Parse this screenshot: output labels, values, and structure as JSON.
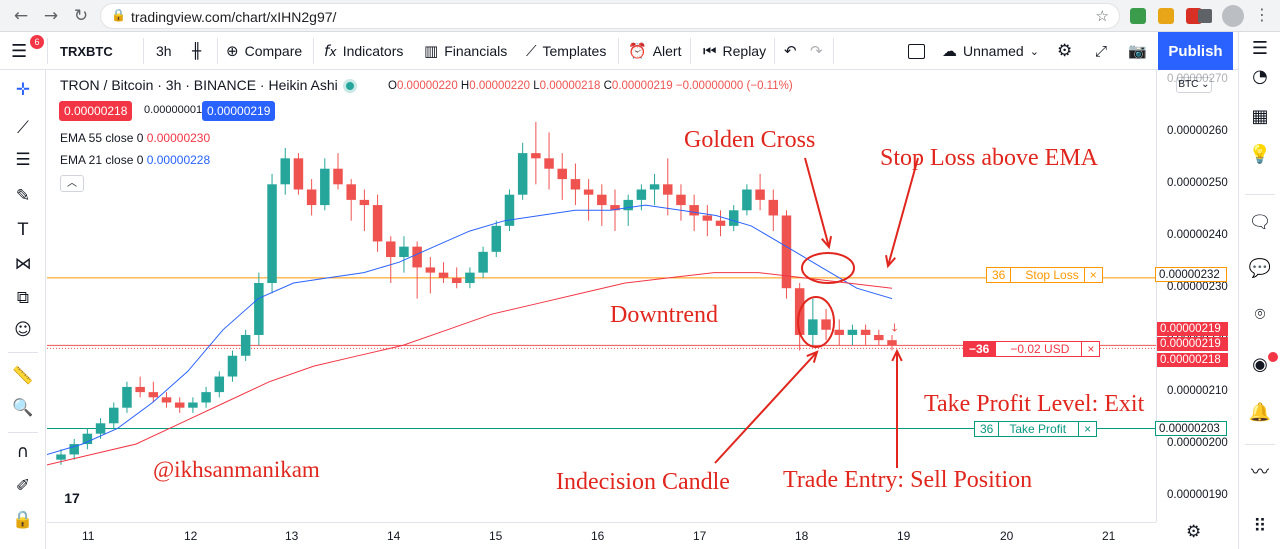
{
  "browser": {
    "back": "←",
    "forward": "→",
    "reload": "↻",
    "home": "⌂",
    "url": "tradingview.com/chart/xIHN2g97/",
    "lock": "🔒",
    "star": "☆",
    "menu": "⋮"
  },
  "toolbar": {
    "notifications": "6",
    "symbol": "TRXBTC",
    "interval": "3h",
    "compare": "Compare",
    "indicators": "Indicators",
    "financials": "Financials",
    "templates": "Templates",
    "alert": "Alert",
    "replay": "Replay",
    "layout_name": "Unnamed",
    "publish": "Publish"
  },
  "legend": {
    "title": "TRON / Bitcoin · 3h · BINANCE · Heikin Ashi",
    "o_label": "O",
    "o": "0.00000220",
    "h_label": "H",
    "h": "0.00000220",
    "l_label": "L",
    "l": "0.00000218",
    "c_label": "C",
    "c": "0.00000219",
    "change": "−0.00000000 (−0.11%)",
    "sell_price": "0.00000218",
    "spread": "0.00000001",
    "buy_price": "0.00000219",
    "ema55": "EMA 55 close 0",
    "ema55_value": "0.00000230",
    "ema21": "EMA 21 close 0",
    "ema21_value": "0.00000228",
    "collapse": "︿"
  },
  "positions": {
    "stop_loss": {
      "qty": "36",
      "label": "Stop Loss",
      "axis_price": "0.00000232"
    },
    "entry": {
      "qty": "−36",
      "label": "−0.02 USD"
    },
    "take_profit": {
      "qty": "36",
      "label": "Take Profit",
      "axis_price": "0.00000203"
    },
    "close": "×"
  },
  "price_axis": {
    "currency": "BTC ⌄",
    "ticks": [
      "0.00000270",
      "0.00000260",
      "0.00000250",
      "0.00000240",
      "0.00000230",
      "0.00000220",
      "0.00000210",
      "0.00000200",
      "0.00000190"
    ],
    "tags": [
      "0.00000219",
      "0.00000219",
      "0.00000218"
    ]
  },
  "time_axis": {
    "labels": [
      "11",
      "12",
      "13",
      "14",
      "15",
      "16",
      "17",
      "18",
      "19",
      "20",
      "21"
    ]
  },
  "annotations": {
    "golden_cross": "Golden Cross",
    "stop_loss": "Stop Loss above EMA",
    "downtrend": "Downtrend",
    "take_profit": "Take Profit Level: Exit",
    "indecision": "Indecision Candle",
    "trade_entry": "Trade Entry: Sell Position",
    "watermark": "@ikhsanmanikam"
  },
  "colors": {
    "up": "#26a69a",
    "down": "#ef5350",
    "ema21": "#2962ff",
    "ema55": "#f23645",
    "stop": "#ff9800",
    "tp": "#089981",
    "accent": "#2962ff",
    "annot": "#e0261d"
  },
  "chart_data": {
    "type": "candlestick",
    "title": "TRON / Bitcoin · 3h · BINANCE · Heikin Ashi",
    "x_labels": [
      "11",
      "12",
      "13",
      "14",
      "15",
      "16",
      "17",
      "18",
      "19",
      "20",
      "21"
    ],
    "y_range": [
      1.85e-06,
      2.72e-06
    ],
    "candles": [
      [
        1.97e-06,
        1.99e-06,
        1.96e-06,
        1.98e-06
      ],
      [
        1.98e-06,
        2.01e-06,
        1.97e-06,
        2e-06
      ],
      [
        2e-06,
        2.03e-06,
        1.99e-06,
        2.02e-06
      ],
      [
        2.02e-06,
        2.05e-06,
        2.01e-06,
        2.04e-06
      ],
      [
        2.04e-06,
        2.08e-06,
        2.03e-06,
        2.07e-06
      ],
      [
        2.07e-06,
        2.12e-06,
        2.06e-06,
        2.11e-06
      ],
      [
        2.11e-06,
        2.13e-06,
        2.09e-06,
        2.1e-06
      ],
      [
        2.1e-06,
        2.12e-06,
        2.08e-06,
        2.09e-06
      ],
      [
        2.09e-06,
        2.1e-06,
        2.07e-06,
        2.08e-06
      ],
      [
        2.08e-06,
        2.09e-06,
        2.06e-06,
        2.07e-06
      ],
      [
        2.07e-06,
        2.09e-06,
        2.06e-06,
        2.08e-06
      ],
      [
        2.08e-06,
        2.11e-06,
        2.07e-06,
        2.1e-06
      ],
      [
        2.1e-06,
        2.14e-06,
        2.09e-06,
        2.13e-06
      ],
      [
        2.13e-06,
        2.18e-06,
        2.12e-06,
        2.17e-06
      ],
      [
        2.17e-06,
        2.22e-06,
        2.16e-06,
        2.21e-06
      ],
      [
        2.21e-06,
        2.33e-06,
        2.19e-06,
        2.31e-06
      ],
      [
        2.31e-06,
        2.52e-06,
        2.29e-06,
        2.5e-06
      ],
      [
        2.5e-06,
        2.57e-06,
        2.48e-06,
        2.55e-06
      ],
      [
        2.55e-06,
        2.56e-06,
        2.48e-06,
        2.49e-06
      ],
      [
        2.49e-06,
        2.51e-06,
        2.44e-06,
        2.46e-06
      ],
      [
        2.46e-06,
        2.55e-06,
        2.45e-06,
        2.53e-06
      ],
      [
        2.53e-06,
        2.56e-06,
        2.49e-06,
        2.5e-06
      ],
      [
        2.5e-06,
        2.51e-06,
        2.43e-06,
        2.47e-06
      ],
      [
        2.47e-06,
        2.49e-06,
        2.41e-06,
        2.46e-06
      ],
      [
        2.46e-06,
        2.48e-06,
        2.37e-06,
        2.39e-06
      ],
      [
        2.39e-06,
        2.4e-06,
        2.31e-06,
        2.36e-06
      ],
      [
        2.36e-06,
        2.4e-06,
        2.33e-06,
        2.38e-06
      ],
      [
        2.38e-06,
        2.39e-06,
        2.28e-06,
        2.34e-06
      ],
      [
        2.34e-06,
        2.36e-06,
        2.29e-06,
        2.33e-06
      ],
      [
        2.33e-06,
        2.35e-06,
        2.31e-06,
        2.32e-06
      ],
      [
        2.32e-06,
        2.34e-06,
        2.3e-06,
        2.31e-06
      ],
      [
        2.31e-06,
        2.34e-06,
        2.3e-06,
        2.33e-06
      ],
      [
        2.33e-06,
        2.38e-06,
        2.32e-06,
        2.37e-06
      ],
      [
        2.37e-06,
        2.43e-06,
        2.36e-06,
        2.42e-06
      ],
      [
        2.42e-06,
        2.49e-06,
        2.41e-06,
        2.48e-06
      ],
      [
        2.48e-06,
        2.58e-06,
        2.47e-06,
        2.56e-06
      ],
      [
        2.56e-06,
        2.62e-06,
        2.5e-06,
        2.55e-06
      ],
      [
        2.55e-06,
        2.6e-06,
        2.49e-06,
        2.53e-06
      ],
      [
        2.53e-06,
        2.56e-06,
        2.47e-06,
        2.51e-06
      ],
      [
        2.51e-06,
        2.54e-06,
        2.46e-06,
        2.49e-06
      ],
      [
        2.49e-06,
        2.51e-06,
        2.43e-06,
        2.48e-06
      ],
      [
        2.48e-06,
        2.5e-06,
        2.42e-06,
        2.46e-06
      ],
      [
        2.46e-06,
        2.49e-06,
        2.41e-06,
        2.45e-06
      ],
      [
        2.45e-06,
        2.48e-06,
        2.42e-06,
        2.47e-06
      ],
      [
        2.47e-06,
        2.5e-06,
        2.45e-06,
        2.49e-06
      ],
      [
        2.49e-06,
        2.52e-06,
        2.46e-06,
        2.5e-06
      ],
      [
        2.5e-06,
        2.55e-06,
        2.44e-06,
        2.48e-06
      ],
      [
        2.48e-06,
        2.5e-06,
        2.43e-06,
        2.46e-06
      ],
      [
        2.46e-06,
        2.48e-06,
        2.41e-06,
        2.44e-06
      ],
      [
        2.44e-06,
        2.46e-06,
        2.4e-06,
        2.43e-06
      ],
      [
        2.43e-06,
        2.45e-06,
        2.4e-06,
        2.42e-06
      ],
      [
        2.42e-06,
        2.46e-06,
        2.41e-06,
        2.45e-06
      ],
      [
        2.45e-06,
        2.5e-06,
        2.44e-06,
        2.49e-06
      ],
      [
        2.49e-06,
        2.52e-06,
        2.45e-06,
        2.47e-06
      ],
      [
        2.47e-06,
        2.49e-06,
        2.41e-06,
        2.44e-06
      ],
      [
        2.44e-06,
        2.45e-06,
        2.28e-06,
        2.3e-06
      ],
      [
        2.3e-06,
        2.31e-06,
        2.18e-06,
        2.21e-06
      ],
      [
        2.21e-06,
        2.28e-06,
        2.19e-06,
        2.24e-06
      ],
      [
        2.24e-06,
        2.26e-06,
        2.2e-06,
        2.22e-06
      ],
      [
        2.22e-06,
        2.24e-06,
        2.19e-06,
        2.21e-06
      ],
      [
        2.21e-06,
        2.23e-06,
        2.19e-06,
        2.22e-06
      ],
      [
        2.22e-06,
        2.23e-06,
        2.19e-06,
        2.21e-06
      ],
      [
        2.21e-06,
        2.22e-06,
        2.19e-06,
        2.2e-06
      ],
      [
        2.2e-06,
        2.21e-06,
        2.18e-06,
        2.19e-06
      ]
    ],
    "ema21": [
      1.98e-06,
      2e-06,
      2.03e-06,
      2.08e-06,
      2.14e-06,
      2.22e-06,
      2.28e-06,
      2.31e-06,
      2.32e-06,
      2.33e-06,
      2.35e-06,
      2.38e-06,
      2.41e-06,
      2.43e-06,
      2.44e-06,
      2.45e-06,
      2.45e-06,
      2.46e-06,
      2.45e-06,
      2.44e-06,
      2.42e-06,
      2.38e-06,
      2.34e-06,
      2.3e-06,
      2.28e-06
    ],
    "ema55": [
      1.96e-06,
      1.98e-06,
      2e-06,
      2.04e-06,
      2.08e-06,
      2.12e-06,
      2.15e-06,
      2.17e-06,
      2.19e-06,
      2.22e-06,
      2.25e-06,
      2.27e-06,
      2.29e-06,
      2.31e-06,
      2.32e-06,
      2.33e-06,
      2.33e-06,
      2.32e-06,
      2.31e-06,
      2.3e-06
    ],
    "stop_loss": 2.32e-06,
    "take_profit": 2.03e-06,
    "entry": 2.19e-06
  }
}
